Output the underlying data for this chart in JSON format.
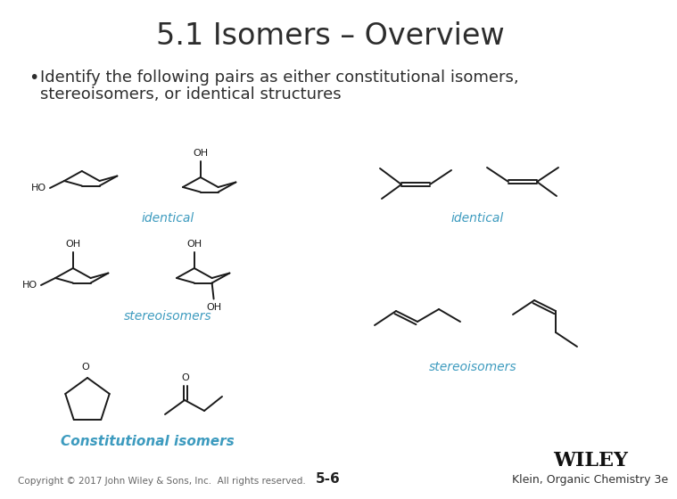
{
  "title": "5.1 Isomers – Overview",
  "title_fontsize": 24,
  "title_color": "#2d2d2d",
  "bullet_text_line1": "Identify the following pairs as either constitutional isomers,",
  "bullet_text_line2": "stereoisomers, or identical structures",
  "bullet_color": "#2d2d2d",
  "bullet_fontsize": 13,
  "label_identical": "identical",
  "label_stereo": "stereoisomers",
  "label_constitutional": "Constitutional isomers",
  "blue": "#3d9bbf",
  "footer_copyright": "Copyright © 2017 John Wiley & Sons, Inc.  All rights reserved.",
  "footer_page": "5-6",
  "footer_publisher": "WILEY",
  "footer_book": "Klein, Organic Chemistry 3e",
  "bg_color": "#ffffff",
  "lc": "#1a1a1a",
  "label_fontsize": 10,
  "footer_fontsize": 7.5,
  "wiley_fontsize": 16,
  "book_fontsize": 9
}
